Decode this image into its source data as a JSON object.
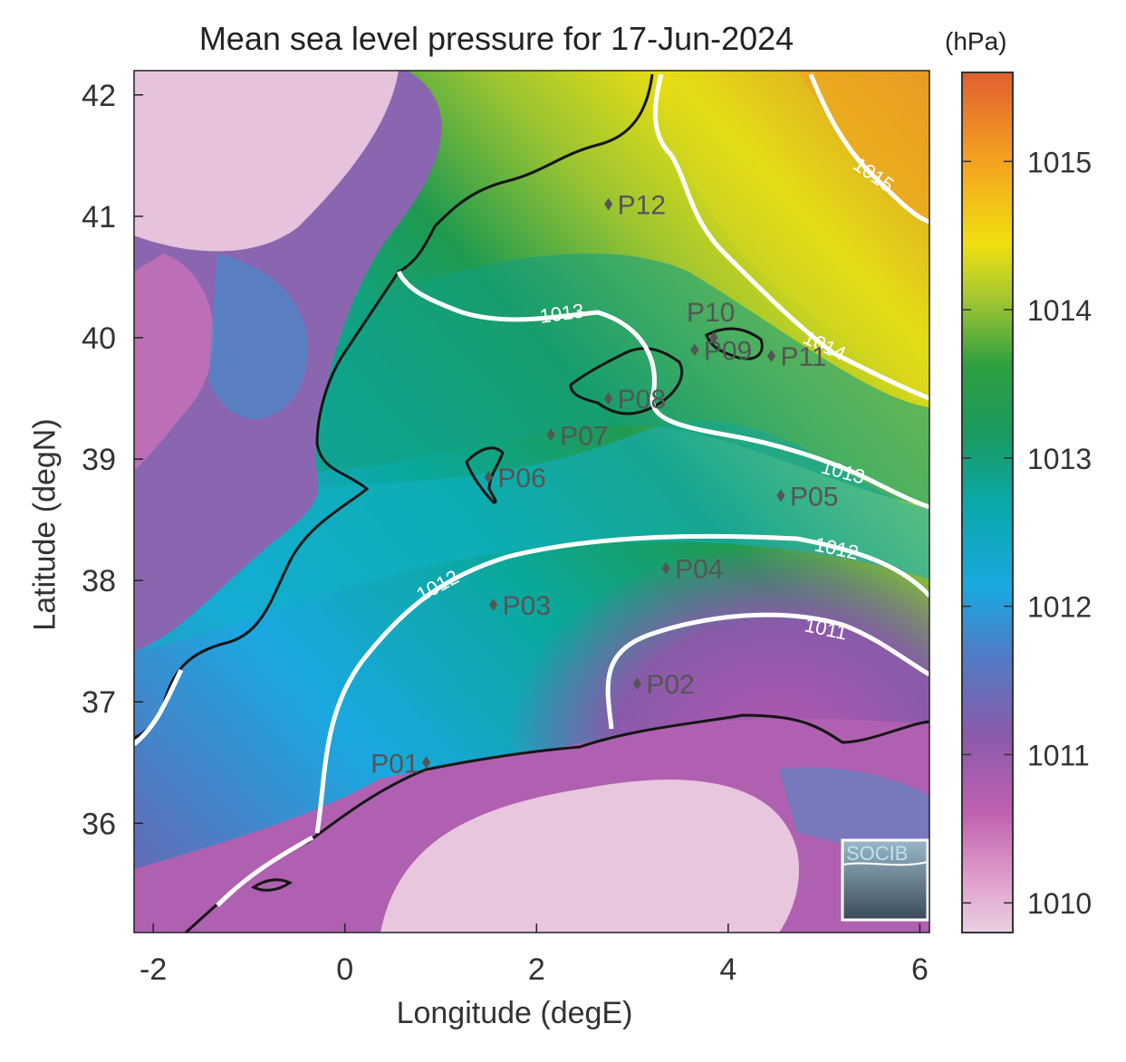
{
  "title": "Mean sea level pressure for 17-Jun-2024",
  "colorbar": {
    "unit_label": "(hPa)",
    "ticks": [
      1010,
      1011,
      1012,
      1013,
      1014,
      1015
    ],
    "tick_labels": [
      "1010",
      "1011",
      "1012",
      "1013",
      "1014",
      "1015"
    ],
    "range": [
      1009.8,
      1015.6
    ],
    "colors": [
      "#e8c2da",
      "#c060b0",
      "#7a5aa8",
      "#1ba8e0",
      "#0aa89a",
      "#1f9a50",
      "#9ac432",
      "#f0e010",
      "#f5a020",
      "#e06030"
    ]
  },
  "axes": {
    "xlabel": "Longitude (degE)",
    "ylabel": "Latitude (degN)",
    "xlim": [
      -2.2,
      6.1
    ],
    "ylim": [
      35.1,
      42.2
    ],
    "xticks": [
      -2,
      0,
      2,
      4,
      6
    ],
    "xtick_labels": [
      "-2",
      "0",
      "2",
      "4",
      "6"
    ],
    "yticks": [
      36,
      37,
      38,
      39,
      40,
      41,
      42
    ],
    "ytick_labels": [
      "36",
      "37",
      "38",
      "39",
      "40",
      "41",
      "42"
    ]
  },
  "contours": [
    {
      "label": "1011"
    },
    {
      "label": "1012"
    },
    {
      "label": "1013"
    },
    {
      "label": "1014"
    },
    {
      "label": "1015"
    }
  ],
  "points": [
    {
      "label": "P01",
      "lon": 0.85,
      "lat": 36.5
    },
    {
      "label": "P02",
      "lon": 3.05,
      "lat": 37.15
    },
    {
      "label": "P03",
      "lon": 1.55,
      "lat": 37.8
    },
    {
      "label": "P04",
      "lon": 3.35,
      "lat": 38.1
    },
    {
      "label": "P05",
      "lon": 4.55,
      "lat": 38.7
    },
    {
      "label": "P06",
      "lon": 1.5,
      "lat": 38.85
    },
    {
      "label": "P07",
      "lon": 2.15,
      "lat": 39.2
    },
    {
      "label": "P08",
      "lon": 2.75,
      "lat": 39.5
    },
    {
      "label": "P09",
      "lon": 3.65,
      "lat": 39.9
    },
    {
      "label": "P10",
      "lon": 3.85,
      "lat": 40.0
    },
    {
      "label": "P11",
      "lon": 4.45,
      "lat": 39.85
    },
    {
      "label": "P12",
      "lon": 2.75,
      "lat": 41.1
    }
  ],
  "logo": {
    "text": "SOCIB"
  }
}
